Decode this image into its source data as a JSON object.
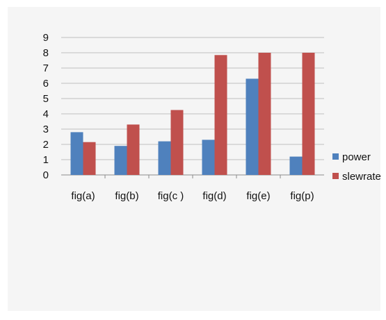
{
  "chart_data": {
    "type": "bar",
    "title": "",
    "xlabel": "",
    "ylabel": "",
    "ylim": [
      0,
      9
    ],
    "yticks": [
      "0",
      "1",
      "2",
      "3",
      "4",
      "5",
      "6",
      "7",
      "8",
      "9"
    ],
    "categories": [
      "fig(a)",
      "fig(b)",
      "fig(c )",
      "fig(d)",
      "fig(e)",
      "fig(p)"
    ],
    "series": [
      {
        "name": "power",
        "color": "#4f81bd",
        "values": [
          2.8,
          1.9,
          2.2,
          2.3,
          6.3,
          1.2
        ]
      },
      {
        "name": "slewrate",
        "color": "#c0504d",
        "values": [
          2.15,
          3.3,
          4.25,
          7.85,
          8.0,
          8.0
        ]
      }
    ],
    "grid": true,
    "legend_position": "right"
  }
}
